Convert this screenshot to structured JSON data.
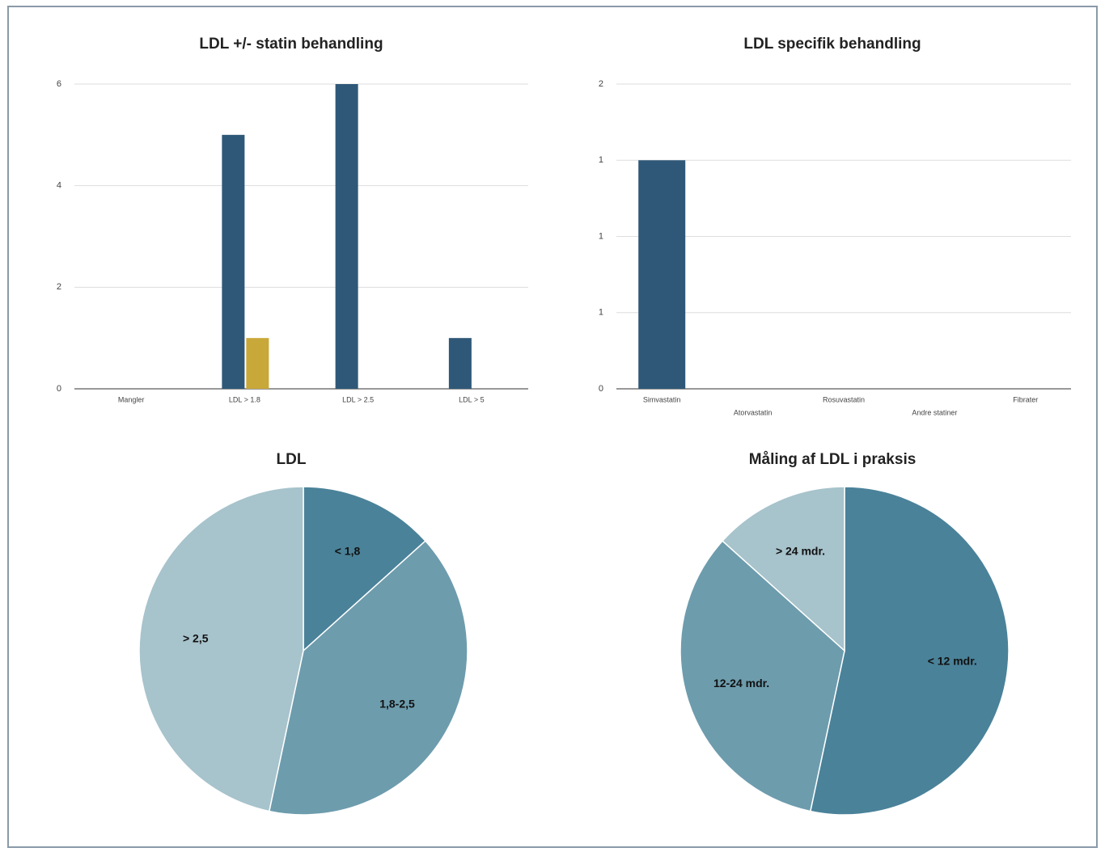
{
  "chart_data": [
    {
      "type": "bar",
      "title": "LDL +/- statin behandling",
      "categories": [
        "Mangler",
        "LDL > 1.8",
        "LDL > 2.5",
        "LDL > 5"
      ],
      "series": [
        {
          "color": "#2f5878",
          "values": [
            0,
            5,
            6,
            1
          ]
        },
        {
          "color": "#c9a83a",
          "values": [
            0,
            1,
            0,
            0
          ]
        }
      ],
      "ylim": [
        0,
        6
      ],
      "yticks": [
        0,
        2,
        4,
        6
      ],
      "grid": true
    },
    {
      "type": "bar",
      "title": "LDL specifik behandling",
      "categories": [
        "Simvastatin",
        "Atorvastatin",
        "Rosuvastatin",
        "Andre statiner",
        "Fibrater"
      ],
      "series": [
        {
          "color": "#2f5878",
          "values": [
            1.5,
            0,
            0,
            0,
            0
          ]
        }
      ],
      "ylim": [
        0,
        2
      ],
      "yticks": [
        0,
        {
          "value": 0.5,
          "label": "1"
        },
        {
          "value": 1,
          "label": "1"
        },
        {
          "value": 1.5,
          "label": "1"
        },
        2
      ],
      "grid": true
    },
    {
      "type": "pie",
      "title": "LDL",
      "categories": [
        "< 1,8",
        "1,8-2,5",
        "> 2,5"
      ],
      "values": [
        2,
        6,
        7
      ],
      "colors": [
        "#4a8299",
        "#6d9cad",
        "#a7c3cc"
      ]
    },
    {
      "type": "pie",
      "title": "Måling af LDL i praksis",
      "categories": [
        "< 12 mdr.",
        "12-24 mdr.",
        "> 24 mdr."
      ],
      "values": [
        8,
        5,
        2
      ],
      "colors": [
        "#4a8299",
        "#6d9cad",
        "#a7c3cc"
      ]
    }
  ]
}
